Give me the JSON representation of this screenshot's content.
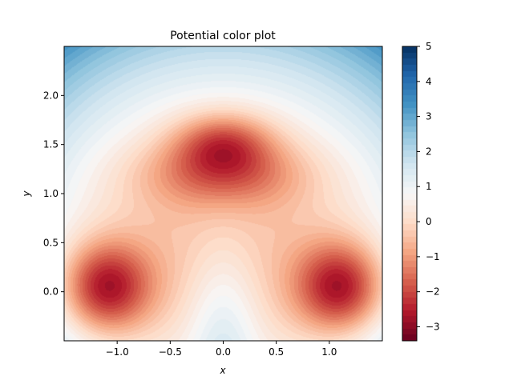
{
  "chart_data": {
    "type": "heatmap",
    "title": "Potential color plot",
    "xlabel": "x",
    "ylabel": "y",
    "xlim": [
      -1.5,
      1.5
    ],
    "ylim": [
      -0.5,
      2.5
    ],
    "x_ticks": [
      -1.0,
      -0.5,
      0.0,
      0.5,
      1.0
    ],
    "x_tick_labels": [
      "−1.0",
      "−0.5",
      "0.0",
      "0.5",
      "1.0"
    ],
    "y_ticks": [
      0.0,
      0.5,
      1.0,
      1.5,
      2.0
    ],
    "y_tick_labels": [
      "0.0",
      "0.5",
      "1.0",
      "1.5",
      "2.0"
    ],
    "colormap": "RdBu",
    "color_range": [
      -3.4,
      5.0
    ],
    "colorbar_ticks": [
      -3,
      -2,
      -1,
      0,
      1,
      2,
      3,
      4,
      5
    ],
    "colorbar_tick_labels": [
      "−3",
      "−2",
      "−1",
      "0",
      "1",
      "2",
      "3",
      "4",
      "5"
    ],
    "features": [
      {
        "kind": "minimum",
        "x": -1.11,
        "y": 0.04,
        "value": -3.4
      },
      {
        "kind": "minimum",
        "x": 1.11,
        "y": 0.04,
        "value": -3.4
      },
      {
        "kind": "minimum",
        "x": 0.0,
        "y": 1.52,
        "value": -2.6
      },
      {
        "kind": "maximum",
        "x": 0.0,
        "y": -0.4,
        "value": 0.9
      },
      {
        "kind": "corner",
        "x": -1.5,
        "y": 2.5,
        "value": 5.0
      },
      {
        "kind": "corner",
        "x": 1.5,
        "y": 2.5,
        "value": 5.0
      }
    ],
    "grid": false,
    "legend": "colorbar-right"
  }
}
